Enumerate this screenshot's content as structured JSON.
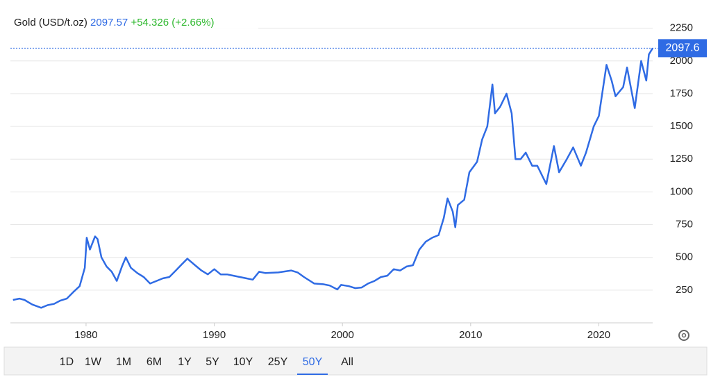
{
  "chart_data": {
    "type": "line",
    "title": "Gold (USD/t.oz)",
    "price": 2097.57,
    "change": "+54.326 (+2.66%)",
    "last_value": 2097.6,
    "color": "#2f6be4",
    "x": [
      1974.3,
      1974.8,
      1975.2,
      1975.8,
      1976.5,
      1977,
      1977.5,
      1978,
      1978.5,
      1979,
      1979.5,
      1979.9,
      1980.05,
      1980.3,
      1980.7,
      1980.9,
      1981.2,
      1981.6,
      1982,
      1982.4,
      1982.8,
      1983.1,
      1983.5,
      1984,
      1984.5,
      1985,
      1985.5,
      1986,
      1986.5,
      1987,
      1987.5,
      1987.9,
      1988.5,
      1989,
      1989.5,
      1990,
      1990.5,
      1991,
      1991.5,
      1992,
      1992.5,
      1993,
      1993.5,
      1994,
      1995,
      1996,
      1996.5,
      1997,
      1997.8,
      1998.5,
      1999,
      1999.6,
      1999.9,
      2000.5,
      2001,
      2001.5,
      2002,
      2002.5,
      2003,
      2003.5,
      2004,
      2004.5,
      2005,
      2005.5,
      2006,
      2006.5,
      2007,
      2007.5,
      2007.9,
      2008.2,
      2008.6,
      2008.8,
      2009,
      2009.5,
      2009.9,
      2010.5,
      2010.9,
      2011.3,
      2011.7,
      2011.9,
      2012.3,
      2012.8,
      2013.2,
      2013.5,
      2013.9,
      2014.3,
      2014.8,
      2015.2,
      2015.9,
      2016.5,
      2016.9,
      2017.5,
      2018,
      2018.6,
      2019,
      2019.6,
      2020,
      2020.6,
      2021,
      2021.3,
      2021.9,
      2022.2,
      2022.8,
      2023.3,
      2023.7,
      2023.9,
      2024.2
    ],
    "values": [
      175,
      185,
      175,
      140,
      115,
      135,
      145,
      170,
      185,
      235,
      280,
      420,
      650,
      560,
      660,
      640,
      500,
      430,
      390,
      320,
      430,
      500,
      420,
      380,
      350,
      300,
      320,
      340,
      350,
      400,
      450,
      490,
      440,
      400,
      370,
      410,
      370,
      370,
      360,
      350,
      340,
      330,
      390,
      380,
      385,
      400,
      385,
      350,
      300,
      295,
      285,
      255,
      290,
      280,
      265,
      270,
      300,
      320,
      350,
      360,
      410,
      400,
      430,
      440,
      560,
      620,
      650,
      670,
      800,
      950,
      850,
      730,
      900,
      940,
      1150,
      1230,
      1400,
      1500,
      1820,
      1600,
      1650,
      1750,
      1600,
      1250,
      1250,
      1300,
      1200,
      1200,
      1060,
      1350,
      1150,
      1250,
      1340,
      1200,
      1300,
      1500,
      1580,
      1970,
      1850,
      1730,
      1800,
      1950,
      1640,
      2000,
      1850,
      2050,
      2097.57
    ],
    "xlim": [
      1974.1,
      2024.2
    ],
    "xticks": [
      1980,
      1990,
      2000,
      2010,
      2020
    ],
    "ylim": [
      0,
      2370
    ],
    "yticks": [
      250,
      500,
      750,
      1000,
      1250,
      1500,
      1750,
      2000,
      2250
    ],
    "grid": true,
    "ranges": [
      "1D",
      "1W",
      "1M",
      "6M",
      "1Y",
      "5Y",
      "10Y",
      "25Y",
      "50Y",
      "All"
    ],
    "active_range": "50Y"
  }
}
